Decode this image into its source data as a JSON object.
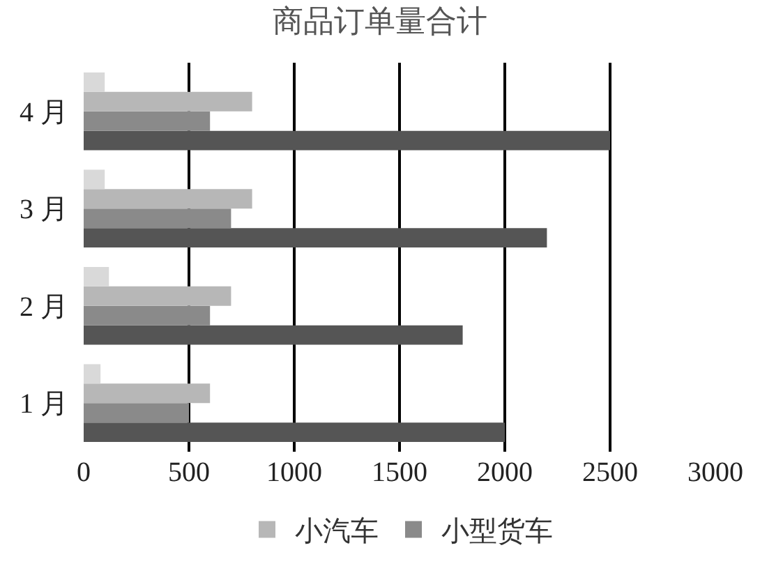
{
  "chart_data": {
    "type": "bar",
    "orientation": "horizontal",
    "title": "商品订单量合计",
    "categories": [
      "4 月",
      "3 月",
      "2 月",
      "1 月"
    ],
    "series": [
      {
        "color": "#d9d9d9",
        "values": [
          100,
          100,
          120,
          80
        ]
      },
      {
        "name": "小汽车",
        "color": "#b7b7b7",
        "values": [
          800,
          800,
          700,
          600
        ]
      },
      {
        "name": "小型货车",
        "color": "#8a8a8a",
        "values": [
          600,
          700,
          600,
          500
        ]
      },
      {
        "color": "#555555",
        "values": [
          2500,
          2200,
          1800,
          2000
        ]
      }
    ],
    "xlim": [
      0,
      3000
    ],
    "xticks": [
      0,
      500,
      1000,
      1500,
      2000,
      2500,
      3000
    ],
    "grid": "x",
    "legend": "bottom"
  }
}
